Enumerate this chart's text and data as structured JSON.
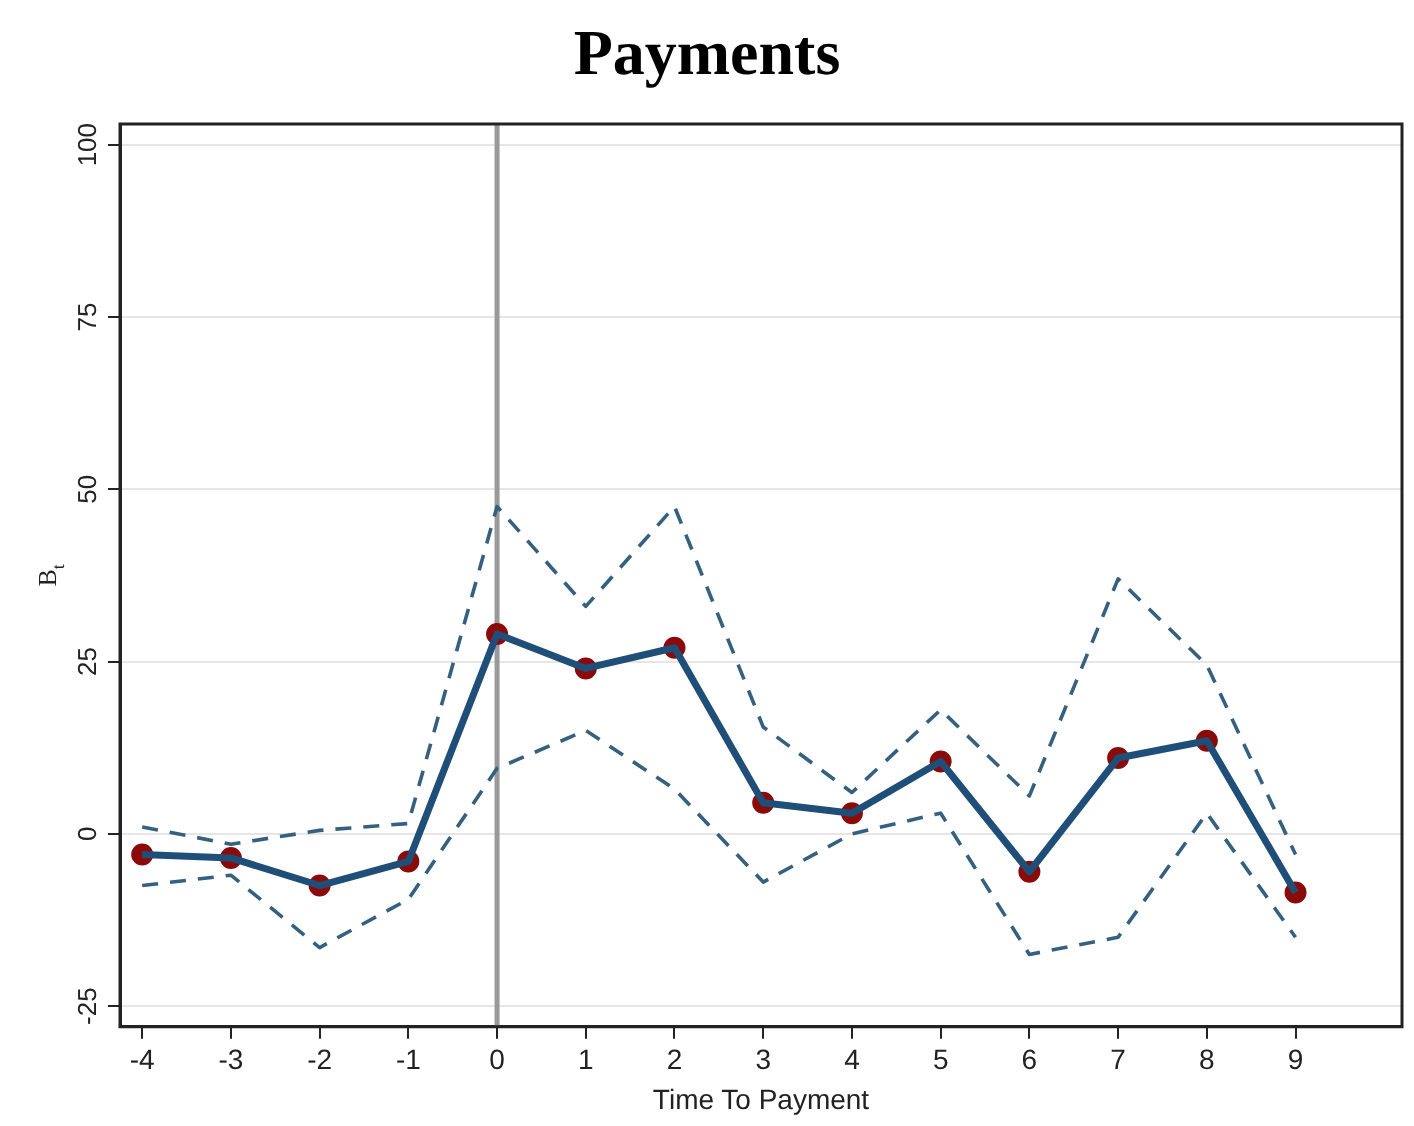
{
  "chart_data": {
    "type": "line",
    "title": "Payments",
    "xlabel": "Time To Payment",
    "ylabel": "B$_{t}$",
    "x": [
      -4,
      -3,
      -2,
      -1,
      0,
      1,
      2,
      3,
      4,
      5,
      6,
      7,
      8,
      9
    ],
    "series": [
      {
        "type": "line",
        "color": "#1f4e79",
        "marker": "none",
        "line_style": "solid",
        "values": [
          -3,
          -3.5,
          -7.5,
          -4,
          29,
          24,
          27,
          4.5,
          3,
          10.5,
          -5.5,
          11,
          13.5,
          -8.5
        ]
      },
      {
        "type": "line",
        "color": "#35607f",
        "marker": "none",
        "line_style": "dashed",
        "values": [
          1,
          -1.5,
          0.5,
          1.5,
          47.5,
          33,
          47.5,
          15.5,
          6,
          18,
          5.5,
          37,
          24.5,
          -3
        ]
      },
      {
        "type": "line",
        "color": "#35607f",
        "marker": "none",
        "line_style": "dashed",
        "values": [
          -7.5,
          -6,
          -16.5,
          -9.5,
          9.5,
          15,
          6.5,
          -7,
          0,
          3,
          -17.5,
          -15,
          3,
          -15
        ]
      },
      {
        "type": "scatter",
        "color": "#8b0a0a",
        "marker": "circle",
        "values": [
          -3,
          -3.5,
          -7.5,
          -4,
          29,
          24,
          27,
          4.5,
          3,
          10.5,
          -5.5,
          11,
          13.5,
          -8.5
        ]
      }
    ],
    "xlim": [
      -4.25,
      10.2
    ],
    "xticks": [
      -4,
      -3,
      -2,
      -1,
      0,
      1,
      2,
      3,
      4,
      5,
      6,
      7,
      8,
      9
    ],
    "ylim": [
      -28,
      103
    ],
    "yticks": [
      -25,
      0,
      25,
      50,
      75,
      100
    ],
    "grid": "y",
    "legend": false,
    "ref_lines": [
      {
        "axis": "x",
        "value": 0,
        "color": "#999999",
        "line_style": "solid"
      }
    ]
  }
}
